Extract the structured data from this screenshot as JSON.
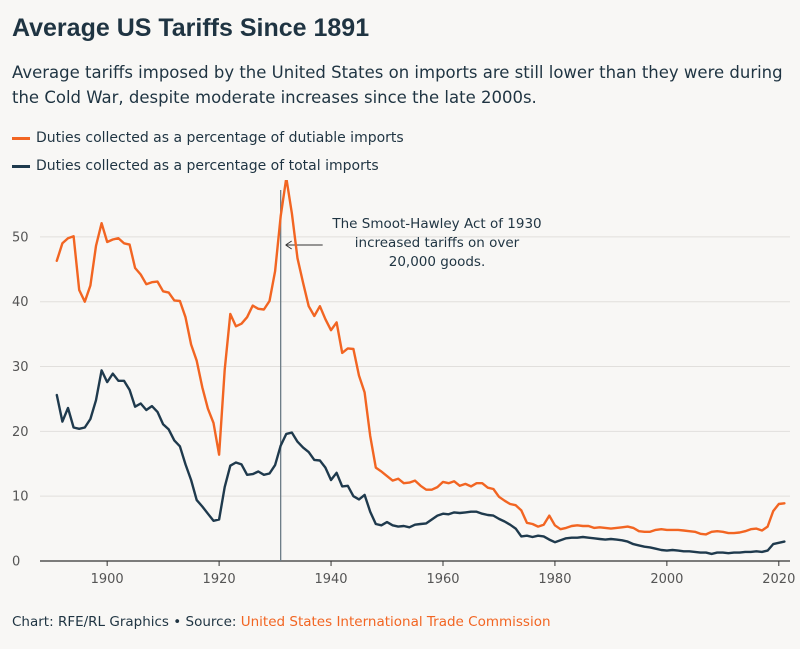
{
  "title": "Average US Tariffs Since 1891",
  "subtitle": "Average tariffs imposed by the United States on imports are still lower than they were during the Cold War, despite moderate increases since the late 2000s.",
  "footer": {
    "prefix": "Chart: RFE/RL Graphics • Source: ",
    "source": "United States International Trade Commission"
  },
  "colors": {
    "dutiable": "#f26522",
    "total": "#1f3a4d",
    "annotation_line": "#6b7b86"
  },
  "chart_data": {
    "type": "line",
    "title": "Average US Tariffs Since 1891",
    "xlim": [
      1888,
      2022
    ],
    "ylim": [
      0,
      58
    ],
    "x_ticks": [
      1900,
      1920,
      1940,
      1960,
      1980,
      2000,
      2020
    ],
    "y_ticks": [
      0,
      10,
      20,
      30,
      40,
      50
    ],
    "grid": "horizontal",
    "legend_position": "top-left",
    "annotation": {
      "x": 1931,
      "lines": [
        "The Smoot-Hawley Act of 1930",
        "increased tariffs on over",
        "20,000 goods."
      ]
    },
    "series": [
      {
        "name": "Duties collected as a percentage of dutiable imports",
        "color": "#f26522",
        "points": [
          [
            1891,
            46.3
          ],
          [
            1892,
            49.0
          ],
          [
            1893,
            49.8
          ],
          [
            1894,
            50.1
          ],
          [
            1895,
            41.8
          ],
          [
            1896,
            40.0
          ],
          [
            1897,
            42.5
          ],
          [
            1898,
            48.6
          ],
          [
            1899,
            52.1
          ],
          [
            1900,
            49.2
          ],
          [
            1901,
            49.6
          ],
          [
            1902,
            49.8
          ],
          [
            1903,
            49.0
          ],
          [
            1904,
            48.8
          ],
          [
            1905,
            45.2
          ],
          [
            1906,
            44.2
          ],
          [
            1907,
            42.7
          ],
          [
            1908,
            43.0
          ],
          [
            1909,
            43.1
          ],
          [
            1910,
            41.6
          ],
          [
            1911,
            41.4
          ],
          [
            1912,
            40.2
          ],
          [
            1913,
            40.1
          ],
          [
            1914,
            37.6
          ],
          [
            1915,
            33.4
          ],
          [
            1916,
            30.9
          ],
          [
            1917,
            26.8
          ],
          [
            1918,
            23.5
          ],
          [
            1919,
            21.3
          ],
          [
            1920,
            16.4
          ],
          [
            1921,
            29.5
          ],
          [
            1922,
            38.1
          ],
          [
            1923,
            36.2
          ],
          [
            1924,
            36.6
          ],
          [
            1925,
            37.6
          ],
          [
            1926,
            39.4
          ],
          [
            1927,
            38.9
          ],
          [
            1928,
            38.8
          ],
          [
            1929,
            40.1
          ],
          [
            1930,
            44.7
          ],
          [
            1931,
            53.2
          ],
          [
            1932,
            59.1
          ],
          [
            1933,
            53.6
          ],
          [
            1934,
            46.7
          ],
          [
            1935,
            42.9
          ],
          [
            1936,
            39.3
          ],
          [
            1937,
            37.8
          ],
          [
            1938,
            39.3
          ],
          [
            1939,
            37.3
          ],
          [
            1940,
            35.6
          ],
          [
            1941,
            36.8
          ],
          [
            1942,
            32.1
          ],
          [
            1943,
            32.8
          ],
          [
            1944,
            32.7
          ],
          [
            1945,
            28.6
          ],
          [
            1946,
            26.0
          ],
          [
            1947,
            19.3
          ],
          [
            1948,
            14.4
          ],
          [
            1949,
            13.8
          ],
          [
            1950,
            13.1
          ],
          [
            1951,
            12.4
          ],
          [
            1952,
            12.7
          ],
          [
            1953,
            12.0
          ],
          [
            1954,
            12.1
          ],
          [
            1955,
            12.4
          ],
          [
            1956,
            11.6
          ],
          [
            1957,
            11.0
          ],
          [
            1958,
            11.0
          ],
          [
            1959,
            11.4
          ],
          [
            1960,
            12.2
          ],
          [
            1961,
            12.0
          ],
          [
            1962,
            12.3
          ],
          [
            1963,
            11.6
          ],
          [
            1964,
            11.9
          ],
          [
            1965,
            11.5
          ],
          [
            1966,
            12.0
          ],
          [
            1967,
            12.0
          ],
          [
            1968,
            11.3
          ],
          [
            1969,
            11.1
          ],
          [
            1970,
            9.9
          ],
          [
            1971,
            9.3
          ],
          [
            1972,
            8.8
          ],
          [
            1973,
            8.6
          ],
          [
            1974,
            7.8
          ],
          [
            1975,
            5.9
          ],
          [
            1976,
            5.7
          ],
          [
            1977,
            5.3
          ],
          [
            1978,
            5.6
          ],
          [
            1979,
            7.0
          ],
          [
            1980,
            5.5
          ],
          [
            1981,
            4.9
          ],
          [
            1982,
            5.1
          ],
          [
            1983,
            5.4
          ],
          [
            1984,
            5.5
          ],
          [
            1985,
            5.4
          ],
          [
            1986,
            5.4
          ],
          [
            1987,
            5.1
          ],
          [
            1988,
            5.2
          ],
          [
            1989,
            5.1
          ],
          [
            1990,
            5.0
          ],
          [
            1991,
            5.1
          ],
          [
            1992,
            5.2
          ],
          [
            1993,
            5.3
          ],
          [
            1994,
            5.1
          ],
          [
            1995,
            4.6
          ],
          [
            1996,
            4.5
          ],
          [
            1997,
            4.5
          ],
          [
            1998,
            4.8
          ],
          [
            1999,
            4.9
          ],
          [
            2000,
            4.8
          ],
          [
            2001,
            4.8
          ],
          [
            2002,
            4.8
          ],
          [
            2003,
            4.7
          ],
          [
            2004,
            4.6
          ],
          [
            2005,
            4.5
          ],
          [
            2006,
            4.2
          ],
          [
            2007,
            4.1
          ],
          [
            2008,
            4.5
          ],
          [
            2009,
            4.6
          ],
          [
            2010,
            4.5
          ],
          [
            2011,
            4.3
          ],
          [
            2012,
            4.3
          ],
          [
            2013,
            4.4
          ],
          [
            2014,
            4.6
          ],
          [
            2015,
            4.9
          ],
          [
            2016,
            5.0
          ],
          [
            2017,
            4.7
          ],
          [
            2018,
            5.3
          ],
          [
            2019,
            7.7
          ],
          [
            2020,
            8.8
          ],
          [
            2021,
            8.9
          ]
        ]
      },
      {
        "name": "Duties collected as a percentage of total imports",
        "color": "#1f3a4d",
        "points": [
          [
            1891,
            25.6
          ],
          [
            1892,
            21.5
          ],
          [
            1893,
            23.6
          ],
          [
            1894,
            20.6
          ],
          [
            1895,
            20.4
          ],
          [
            1896,
            20.6
          ],
          [
            1897,
            21.9
          ],
          [
            1898,
            24.8
          ],
          [
            1899,
            29.4
          ],
          [
            1900,
            27.6
          ],
          [
            1901,
            28.9
          ],
          [
            1902,
            27.8
          ],
          [
            1903,
            27.8
          ],
          [
            1904,
            26.4
          ],
          [
            1905,
            23.8
          ],
          [
            1906,
            24.3
          ],
          [
            1907,
            23.3
          ],
          [
            1908,
            23.9
          ],
          [
            1909,
            23.0
          ],
          [
            1910,
            21.1
          ],
          [
            1911,
            20.3
          ],
          [
            1912,
            18.6
          ],
          [
            1913,
            17.7
          ],
          [
            1914,
            14.9
          ],
          [
            1915,
            12.5
          ],
          [
            1916,
            9.4
          ],
          [
            1917,
            8.4
          ],
          [
            1918,
            7.3
          ],
          [
            1919,
            6.2
          ],
          [
            1920,
            6.4
          ],
          [
            1921,
            11.4
          ],
          [
            1922,
            14.7
          ],
          [
            1923,
            15.2
          ],
          [
            1924,
            14.9
          ],
          [
            1925,
            13.3
          ],
          [
            1926,
            13.4
          ],
          [
            1927,
            13.8
          ],
          [
            1928,
            13.3
          ],
          [
            1929,
            13.5
          ],
          [
            1930,
            14.8
          ],
          [
            1931,
            17.8
          ],
          [
            1932,
            19.6
          ],
          [
            1933,
            19.8
          ],
          [
            1934,
            18.4
          ],
          [
            1935,
            17.5
          ],
          [
            1936,
            16.8
          ],
          [
            1937,
            15.6
          ],
          [
            1938,
            15.5
          ],
          [
            1939,
            14.4
          ],
          [
            1940,
            12.5
          ],
          [
            1941,
            13.6
          ],
          [
            1942,
            11.5
          ],
          [
            1943,
            11.6
          ],
          [
            1944,
            10.0
          ],
          [
            1945,
            9.5
          ],
          [
            1946,
            10.2
          ],
          [
            1947,
            7.6
          ],
          [
            1948,
            5.7
          ],
          [
            1949,
            5.5
          ],
          [
            1950,
            6.0
          ],
          [
            1951,
            5.5
          ],
          [
            1952,
            5.3
          ],
          [
            1953,
            5.4
          ],
          [
            1954,
            5.2
          ],
          [
            1955,
            5.6
          ],
          [
            1956,
            5.7
          ],
          [
            1957,
            5.8
          ],
          [
            1958,
            6.4
          ],
          [
            1959,
            7.0
          ],
          [
            1960,
            7.3
          ],
          [
            1961,
            7.2
          ],
          [
            1962,
            7.5
          ],
          [
            1963,
            7.4
          ],
          [
            1964,
            7.5
          ],
          [
            1965,
            7.6
          ],
          [
            1966,
            7.6
          ],
          [
            1967,
            7.3
          ],
          [
            1968,
            7.1
          ],
          [
            1969,
            7.0
          ],
          [
            1970,
            6.5
          ],
          [
            1971,
            6.1
          ],
          [
            1972,
            5.6
          ],
          [
            1973,
            5.0
          ],
          [
            1974,
            3.8
          ],
          [
            1975,
            3.9
          ],
          [
            1976,
            3.7
          ],
          [
            1977,
            3.9
          ],
          [
            1978,
            3.8
          ],
          [
            1979,
            3.3
          ],
          [
            1980,
            2.9
          ],
          [
            1981,
            3.2
          ],
          [
            1982,
            3.5
          ],
          [
            1983,
            3.6
          ],
          [
            1984,
            3.6
          ],
          [
            1985,
            3.7
          ],
          [
            1986,
            3.6
          ],
          [
            1987,
            3.5
          ],
          [
            1988,
            3.4
          ],
          [
            1989,
            3.3
          ],
          [
            1990,
            3.4
          ],
          [
            1991,
            3.3
          ],
          [
            1992,
            3.2
          ],
          [
            1993,
            3.0
          ],
          [
            1994,
            2.6
          ],
          [
            1995,
            2.4
          ],
          [
            1996,
            2.2
          ],
          [
            1997,
            2.1
          ],
          [
            1998,
            1.9
          ],
          [
            1999,
            1.7
          ],
          [
            2000,
            1.6
          ],
          [
            2001,
            1.7
          ],
          [
            2002,
            1.6
          ],
          [
            2003,
            1.5
          ],
          [
            2004,
            1.5
          ],
          [
            2005,
            1.4
          ],
          [
            2006,
            1.3
          ],
          [
            2007,
            1.3
          ],
          [
            2008,
            1.1
          ],
          [
            2009,
            1.3
          ],
          [
            2010,
            1.3
          ],
          [
            2011,
            1.2
          ],
          [
            2012,
            1.3
          ],
          [
            2013,
            1.3
          ],
          [
            2014,
            1.4
          ],
          [
            2015,
            1.4
          ],
          [
            2016,
            1.5
          ],
          [
            2017,
            1.4
          ],
          [
            2018,
            1.6
          ],
          [
            2019,
            2.6
          ],
          [
            2020,
            2.8
          ],
          [
            2021,
            3.0
          ]
        ]
      }
    ]
  }
}
